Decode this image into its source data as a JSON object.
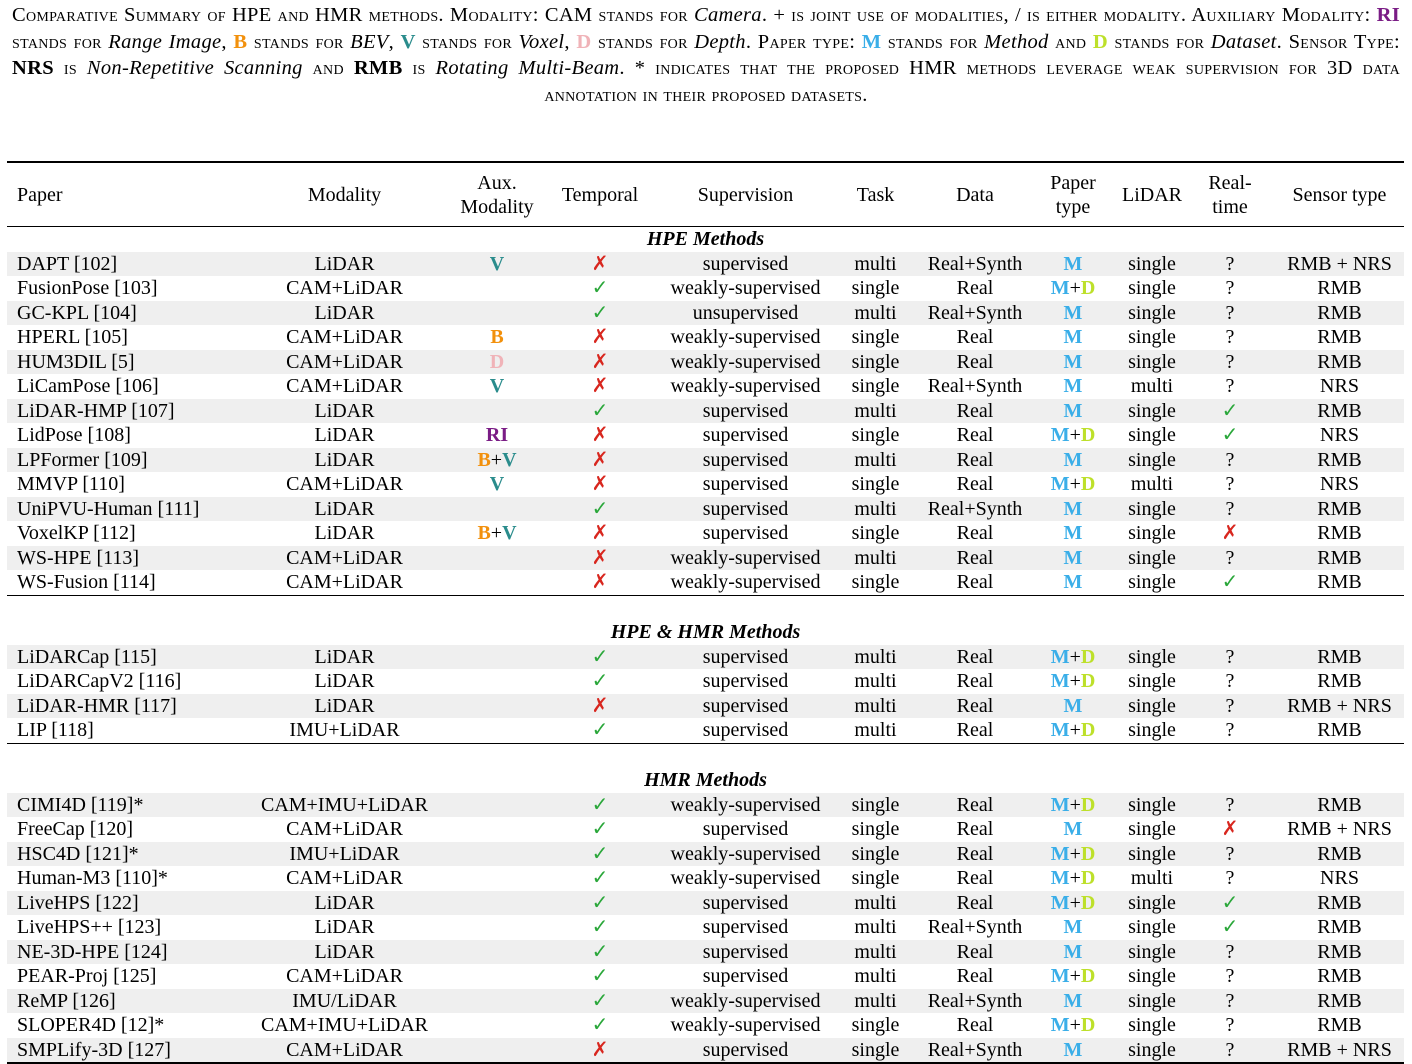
{
  "caption": {
    "parts": [
      "Comparative Summary of HPE and HMR methods. Modality: CAM stands for ",
      "Camera",
      ". + is joint use of modalities, / is either modality. Auxiliary Modality: ",
      "RI",
      " stands for ",
      "Range Image",
      ", ",
      "B",
      " stands for ",
      "BEV",
      ", ",
      "V",
      " stands for ",
      "Voxel",
      ", ",
      "D",
      " stands for ",
      "Depth",
      ". Paper type: ",
      "M",
      " stands for ",
      "Method",
      " and ",
      "D",
      " stands for ",
      "Dataset",
      ". Sensor Type: ",
      "NRS",
      " is ",
      "Non-Repetitive Scanning",
      " and ",
      "RMB",
      " is ",
      "Rotating Multi-Beam",
      ". * indicates that the proposed HMR methods leverage weak supervision for 3D data annotation in their proposed datasets."
    ]
  },
  "columns": [
    "Paper",
    "Modality",
    "Aux.\nModality",
    "Temporal",
    "Supervision",
    "Task",
    "Data",
    "Paper\ntype",
    "LiDAR",
    "Real-\ntime",
    "Sensor type"
  ],
  "column_labels": {
    "paper": "Paper",
    "modality": "Modality",
    "aux_1": "Aux.",
    "aux_2": "Modality",
    "temporal": "Temporal",
    "supervision": "Supervision",
    "task": "Task",
    "data": "Data",
    "ptype_1": "Paper",
    "ptype_2": "type",
    "lidar": "LiDAR",
    "rt_1": "Real-",
    "rt_2": "time",
    "sensor": "Sensor type"
  },
  "symbols": {
    "check": "✓",
    "cross": "✗",
    "unknown": "?"
  },
  "colors": {
    "RI": "#7a1c85",
    "B": "#f2900c",
    "V": "#2a8c8c",
    "D_aux": "#f0b3b8",
    "M": "#3aaee8",
    "D_paper": "#bde02a",
    "check": "#2aa73a",
    "cross": "#d8261e",
    "shade": "#efefef"
  },
  "sections": [
    {
      "title": "HPE Methods",
      "rows": [
        {
          "paper": "DAPT [102]",
          "modality": "LiDAR",
          "aux": "V",
          "temporal": "cross",
          "supervision": "supervised",
          "task": "multi",
          "data": "Real+Synth",
          "ptype": "M",
          "lidar": "single",
          "realtime": "?",
          "sensor": "RMB + NRS"
        },
        {
          "paper": "FusionPose [103]",
          "modality": "CAM+LiDAR",
          "aux": "",
          "temporal": "check",
          "supervision": "weakly-supervised",
          "task": "single",
          "data": "Real",
          "ptype": "M+D",
          "lidar": "single",
          "realtime": "?",
          "sensor": "RMB"
        },
        {
          "paper": "GC-KPL [104]",
          "modality": "LiDAR",
          "aux": "",
          "temporal": "check",
          "supervision": "unsupervised",
          "task": "multi",
          "data": "Real+Synth",
          "ptype": "M",
          "lidar": "single",
          "realtime": "?",
          "sensor": "RMB"
        },
        {
          "paper": "HPERL [105]",
          "modality": "CAM+LiDAR",
          "aux": "B",
          "temporal": "cross",
          "supervision": "weakly-supervised",
          "task": "single",
          "data": "Real",
          "ptype": "M",
          "lidar": "single",
          "realtime": "?",
          "sensor": "RMB"
        },
        {
          "paper": "HUM3DIL [5]",
          "modality": "CAM+LiDAR",
          "aux": "D",
          "temporal": "cross",
          "supervision": "weakly-supervised",
          "task": "single",
          "data": "Real",
          "ptype": "M",
          "lidar": "single",
          "realtime": "?",
          "sensor": "RMB"
        },
        {
          "paper": "LiCamPose [106]",
          "modality": "CAM+LiDAR",
          "aux": "V",
          "temporal": "cross",
          "supervision": "weakly-supervised",
          "task": "single",
          "data": "Real+Synth",
          "ptype": "M",
          "lidar": "multi",
          "realtime": "?",
          "sensor": "NRS"
        },
        {
          "paper": "LiDAR-HMP [107]",
          "modality": "LiDAR",
          "aux": "",
          "temporal": "check",
          "supervision": "supervised",
          "task": "multi",
          "data": "Real",
          "ptype": "M",
          "lidar": "single",
          "realtime": "check",
          "sensor": "RMB"
        },
        {
          "paper": "LidPose [108]",
          "modality": "LiDAR",
          "aux": "RI",
          "temporal": "cross",
          "supervision": "supervised",
          "task": "single",
          "data": "Real",
          "ptype": "M+D",
          "lidar": "single",
          "realtime": "check",
          "sensor": "NRS"
        },
        {
          "paper": "LPFormer [109]",
          "modality": "LiDAR",
          "aux": "B+V",
          "temporal": "cross",
          "supervision": "supervised",
          "task": "multi",
          "data": "Real",
          "ptype": "M",
          "lidar": "single",
          "realtime": "?",
          "sensor": "RMB"
        },
        {
          "paper": "MMVP [110]",
          "modality": "CAM+LiDAR",
          "aux": "V",
          "temporal": "cross",
          "supervision": "supervised",
          "task": "single",
          "data": "Real",
          "ptype": "M+D",
          "lidar": "multi",
          "realtime": "?",
          "sensor": "NRS"
        },
        {
          "paper": "UniPVU-Human [111]",
          "modality": "LiDAR",
          "aux": "",
          "temporal": "check",
          "supervision": "supervised",
          "task": "multi",
          "data": "Real+Synth",
          "ptype": "M",
          "lidar": "single",
          "realtime": "?",
          "sensor": "RMB"
        },
        {
          "paper": "VoxelKP [112]",
          "modality": "LiDAR",
          "aux": "B+V",
          "temporal": "cross",
          "supervision": "supervised",
          "task": "single",
          "data": "Real",
          "ptype": "M",
          "lidar": "single",
          "realtime": "cross",
          "sensor": "RMB"
        },
        {
          "paper": "WS-HPE [113]",
          "modality": "CAM+LiDAR",
          "aux": "",
          "temporal": "cross",
          "supervision": "weakly-supervised",
          "task": "multi",
          "data": "Real",
          "ptype": "M",
          "lidar": "single",
          "realtime": "?",
          "sensor": "RMB"
        },
        {
          "paper": "WS-Fusion [114]",
          "modality": "CAM+LiDAR",
          "aux": "",
          "temporal": "cross",
          "supervision": "weakly-supervised",
          "task": "single",
          "data": "Real",
          "ptype": "M",
          "lidar": "single",
          "realtime": "check",
          "sensor": "RMB"
        }
      ]
    },
    {
      "title": "HPE & HMR Methods",
      "rows": [
        {
          "paper": "LiDARCap [115]",
          "modality": "LiDAR",
          "aux": "",
          "temporal": "check",
          "supervision": "supervised",
          "task": "multi",
          "data": "Real",
          "ptype": "M+D",
          "lidar": "single",
          "realtime": "?",
          "sensor": "RMB"
        },
        {
          "paper": "LiDARCapV2 [116]",
          "modality": "LiDAR",
          "aux": "",
          "temporal": "check",
          "supervision": "supervised",
          "task": "multi",
          "data": "Real",
          "ptype": "M+D",
          "lidar": "single",
          "realtime": "?",
          "sensor": "RMB"
        },
        {
          "paper": "LiDAR-HMR [117]",
          "modality": "LiDAR",
          "aux": "",
          "temporal": "cross",
          "supervision": "supervised",
          "task": "multi",
          "data": "Real",
          "ptype": "M",
          "lidar": "single",
          "realtime": "?",
          "sensor": "RMB + NRS"
        },
        {
          "paper": "LIP [118]",
          "modality": "IMU+LiDAR",
          "aux": "",
          "temporal": "check",
          "supervision": "supervised",
          "task": "multi",
          "data": "Real",
          "ptype": "M+D",
          "lidar": "single",
          "realtime": "?",
          "sensor": "RMB"
        }
      ]
    },
    {
      "title": "HMR Methods",
      "rows": [
        {
          "paper": "CIMI4D [119]*",
          "modality": "CAM+IMU+LiDAR",
          "aux": "",
          "temporal": "check",
          "supervision": "weakly-supervised",
          "task": "single",
          "data": "Real",
          "ptype": "M+D",
          "lidar": "single",
          "realtime": "?",
          "sensor": "RMB"
        },
        {
          "paper": "FreeCap [120]",
          "modality": "CAM+LiDAR",
          "aux": "",
          "temporal": "check",
          "supervision": "supervised",
          "task": "single",
          "data": "Real",
          "ptype": "M",
          "lidar": "single",
          "realtime": "cross",
          "sensor": "RMB + NRS"
        },
        {
          "paper": "HSC4D [121]*",
          "modality": "IMU+LiDAR",
          "aux": "",
          "temporal": "check",
          "supervision": "weakly-supervised",
          "task": "single",
          "data": "Real",
          "ptype": "M+D",
          "lidar": "single",
          "realtime": "?",
          "sensor": "RMB"
        },
        {
          "paper": "Human-M3 [110]*",
          "modality": "CAM+LiDAR",
          "aux": "",
          "temporal": "check",
          "supervision": "weakly-supervised",
          "task": "single",
          "data": "Real",
          "ptype": "M+D",
          "lidar": "multi",
          "realtime": "?",
          "sensor": "NRS"
        },
        {
          "paper": "LiveHPS [122]",
          "modality": "LiDAR",
          "aux": "",
          "temporal": "check",
          "supervision": "supervised",
          "task": "multi",
          "data": "Real",
          "ptype": "M+D",
          "lidar": "single",
          "realtime": "check",
          "sensor": "RMB"
        },
        {
          "paper": "LiveHPS++ [123]",
          "modality": "LiDAR",
          "aux": "",
          "temporal": "check",
          "supervision": "supervised",
          "task": "multi",
          "data": "Real+Synth",
          "ptype": "M",
          "lidar": "single",
          "realtime": "check",
          "sensor": "RMB"
        },
        {
          "paper": "NE-3D-HPE [124]",
          "modality": "LiDAR",
          "aux": "",
          "temporal": "check",
          "supervision": "supervised",
          "task": "multi",
          "data": "Real",
          "ptype": "M",
          "lidar": "single",
          "realtime": "?",
          "sensor": "RMB"
        },
        {
          "paper": "PEAR-Proj [125]",
          "modality": "CAM+LiDAR",
          "aux": "",
          "temporal": "check",
          "supervision": "supervised",
          "task": "multi",
          "data": "Real",
          "ptype": "M+D",
          "lidar": "single",
          "realtime": "?",
          "sensor": "RMB"
        },
        {
          "paper": "ReMP [126]",
          "modality": "IMU/LiDAR",
          "aux": "",
          "temporal": "check",
          "supervision": "weakly-supervised",
          "task": "multi",
          "data": "Real+Synth",
          "ptype": "M",
          "lidar": "single",
          "realtime": "?",
          "sensor": "RMB"
        },
        {
          "paper": "SLOPER4D [12]*",
          "modality": "CAM+IMU+LiDAR",
          "aux": "",
          "temporal": "check",
          "supervision": "weakly-supervised",
          "task": "single",
          "data": "Real",
          "ptype": "M+D",
          "lidar": "single",
          "realtime": "?",
          "sensor": "RMB"
        },
        {
          "paper": "SMPLify-3D [127]",
          "modality": "CAM+LiDAR",
          "aux": "",
          "temporal": "cross",
          "supervision": "supervised",
          "task": "single",
          "data": "Real+Synth",
          "ptype": "M",
          "lidar": "single",
          "realtime": "?",
          "sensor": "RMB + NRS"
        }
      ]
    }
  ]
}
